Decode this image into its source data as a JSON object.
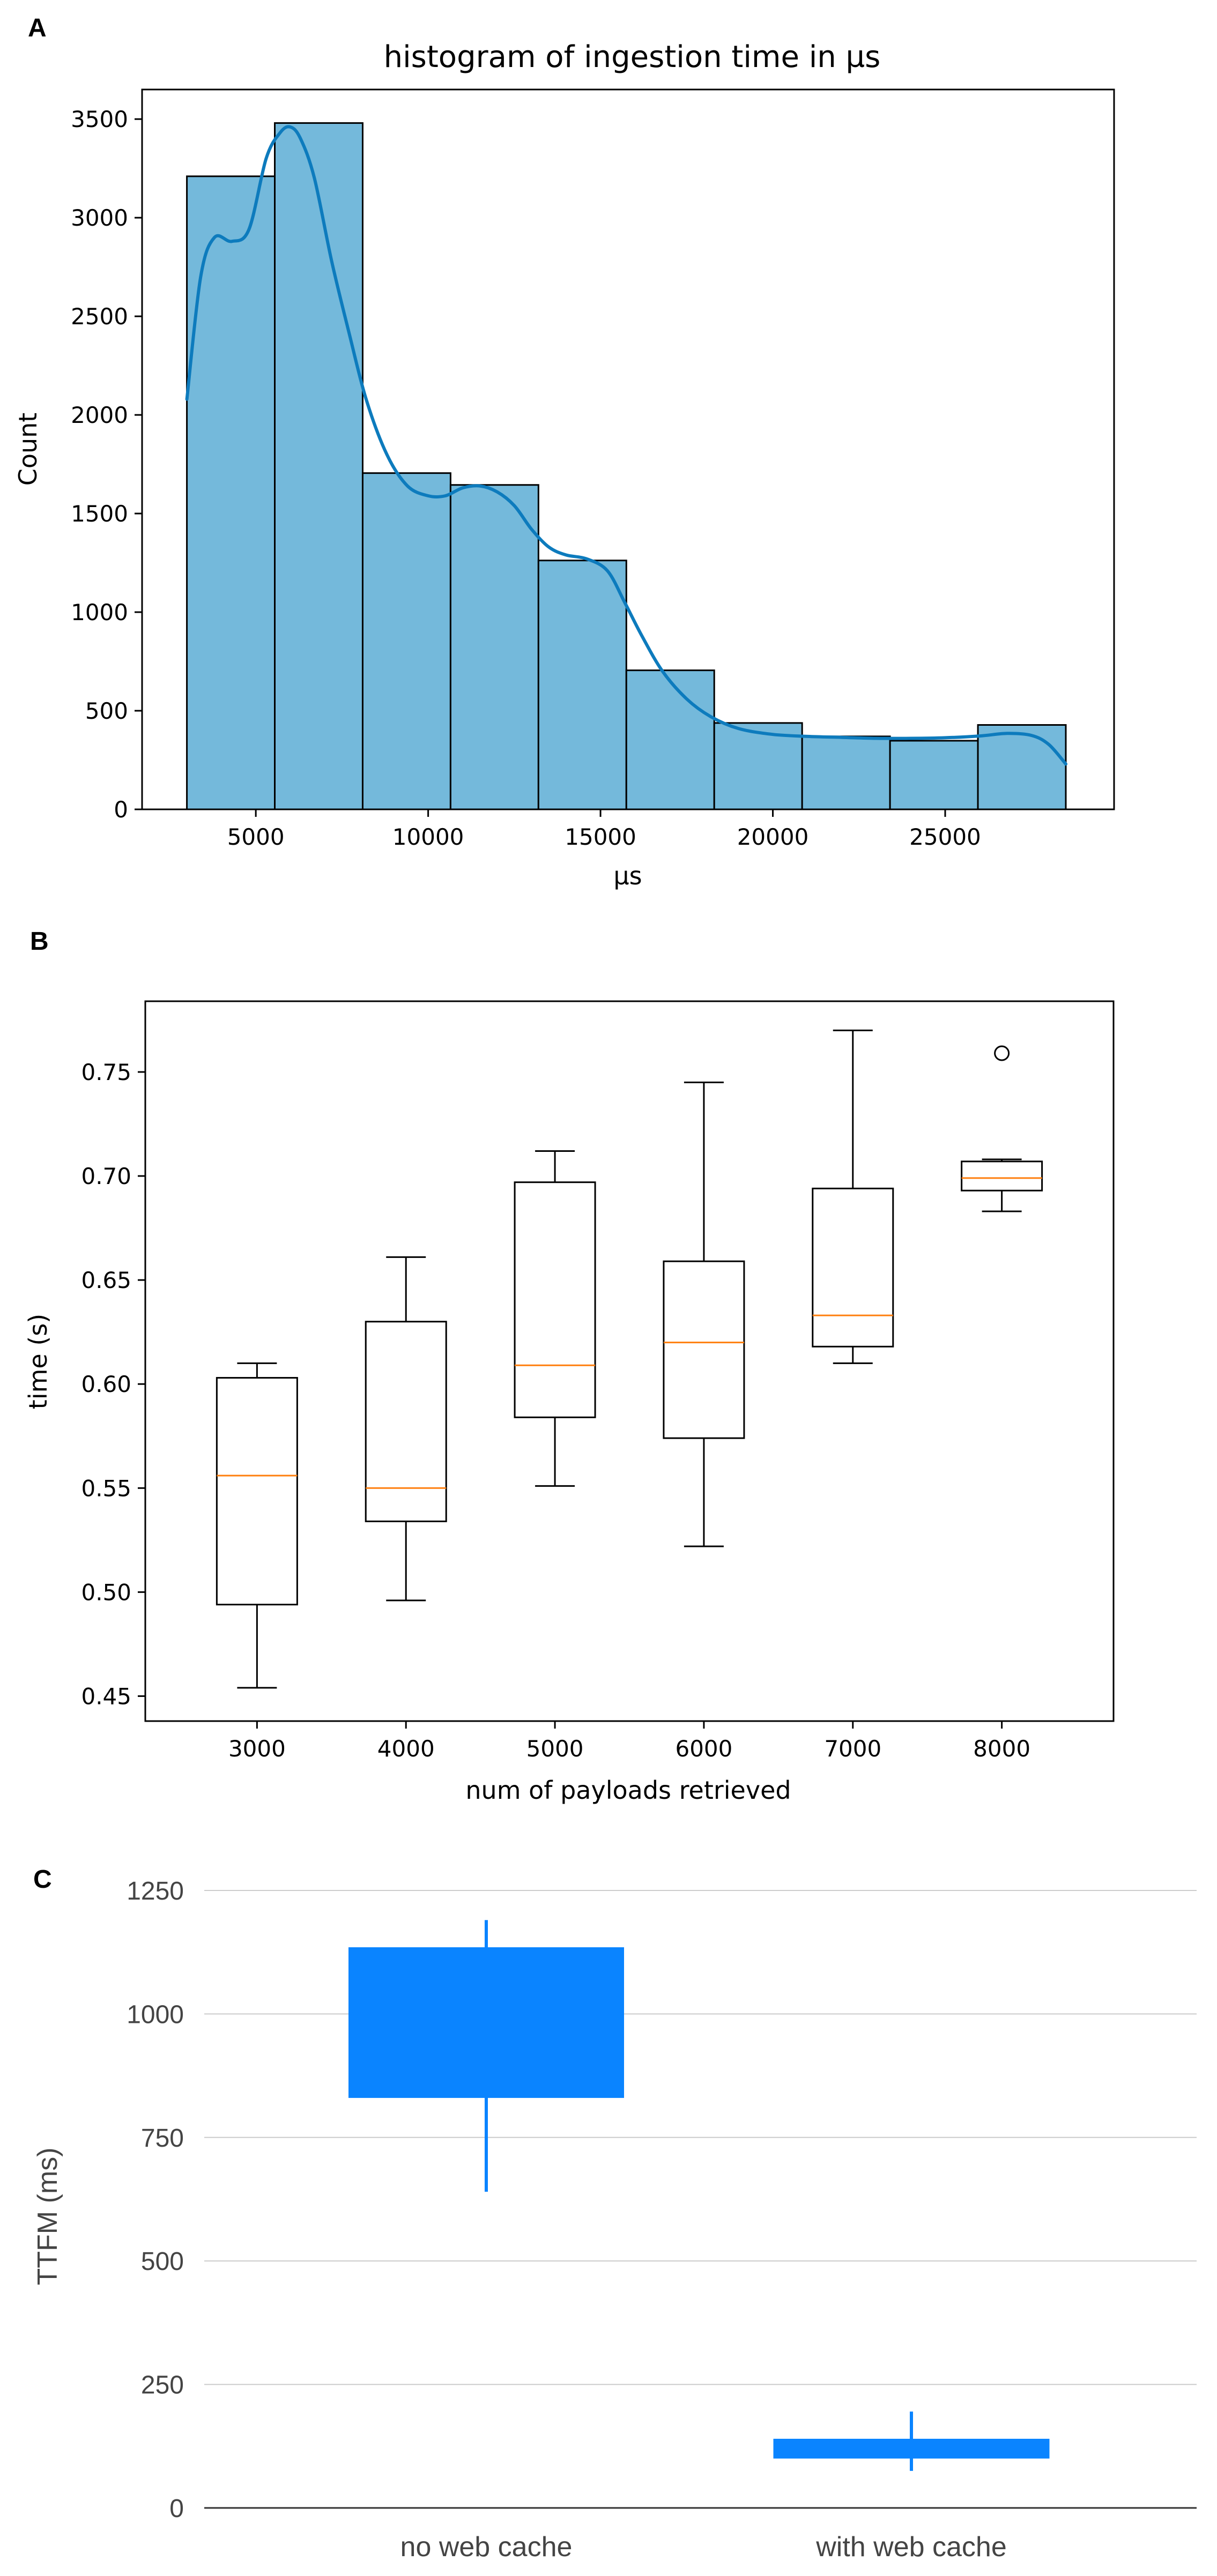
{
  "panel_labels": [
    "A",
    "B",
    "C"
  ],
  "chart_data": [
    {
      "type": "bar",
      "subtype": "histogram_with_kde",
      "title": "histogram of ingestion time in µs",
      "xlabel": "µs",
      "ylabel": "Count",
      "xlim": [
        1700,
        29900
      ],
      "ylim": [
        0,
        3650
      ],
      "xticks": [
        5000,
        10000,
        15000,
        20000,
        25000
      ],
      "yticks": [
        0,
        500,
        1000,
        1500,
        2000,
        2500,
        3000,
        3500
      ],
      "bin_edges": [
        3000,
        5550,
        8100,
        10650,
        13200,
        15750,
        18300,
        20850,
        23400,
        25950,
        28500
      ],
      "values": [
        3210,
        3480,
        1705,
        1645,
        1262,
        705,
        438,
        370,
        348,
        428
      ],
      "bar_color": "#74b9db",
      "kde_color": "#1f77b4",
      "kde": {
        "x": [
          3000,
          3400,
          3800,
          4300,
          4800,
          5300,
          5700,
          6000,
          6300,
          6700,
          7200,
          7700,
          8200,
          8800,
          9400,
          10000,
          10500,
          11000,
          11500,
          12000,
          12500,
          13000,
          13500,
          14000,
          14600,
          15200,
          15700,
          16200,
          16800,
          17500,
          18200,
          19000,
          20000,
          21000,
          22000,
          23000,
          24000,
          25000,
          26000,
          26800,
          27500,
          28000,
          28500
        ],
        "y": [
          2080,
          2700,
          2900,
          2880,
          2940,
          3300,
          3430,
          3460,
          3400,
          3200,
          2780,
          2420,
          2080,
          1800,
          1640,
          1590,
          1590,
          1630,
          1640,
          1610,
          1540,
          1420,
          1330,
          1290,
          1270,
          1210,
          1050,
          880,
          700,
          560,
          470,
          410,
          380,
          370,
          365,
          360,
          360,
          363,
          372,
          385,
          375,
          330,
          230
        ]
      }
    },
    {
      "type": "box",
      "xlabel": "num of payloads retrieved",
      "ylabel": "time (s)",
      "categories": [
        "3000",
        "4000",
        "5000",
        "6000",
        "7000",
        "8000"
      ],
      "ylim": [
        0.438,
        0.784
      ],
      "yticks": [
        0.45,
        0.5,
        0.55,
        0.6,
        0.65,
        0.7,
        0.75
      ],
      "ytick_labels": [
        "0.45",
        "0.50",
        "0.55",
        "0.60",
        "0.65",
        "0.70",
        "0.75"
      ],
      "median_color": "#ff7f0e",
      "boxes": [
        {
          "whislo": 0.454,
          "q1": 0.494,
          "med": 0.556,
          "q3": 0.603,
          "whishi": 0.61,
          "fliers": []
        },
        {
          "whislo": 0.496,
          "q1": 0.534,
          "med": 0.55,
          "q3": 0.63,
          "whishi": 0.661,
          "fliers": []
        },
        {
          "whislo": 0.551,
          "q1": 0.584,
          "med": 0.609,
          "q3": 0.697,
          "whishi": 0.712,
          "fliers": []
        },
        {
          "whislo": 0.522,
          "q1": 0.574,
          "med": 0.62,
          "q3": 0.659,
          "whishi": 0.745,
          "fliers": []
        },
        {
          "whislo": 0.61,
          "q1": 0.618,
          "med": 0.633,
          "q3": 0.694,
          "whishi": 0.77,
          "fliers": []
        },
        {
          "whislo": 0.683,
          "q1": 0.693,
          "med": 0.699,
          "q3": 0.707,
          "whishi": 0.708,
          "fliers": [
            0.759
          ]
        }
      ]
    },
    {
      "type": "box",
      "subtype": "candlestick",
      "ylabel": "TTFM (ms)",
      "categories": [
        "no web cache",
        "with web cache"
      ],
      "ylim": [
        0,
        1250
      ],
      "yticks": [
        0,
        250,
        500,
        750,
        1000,
        1250
      ],
      "grid": true,
      "color": "#0a84ff",
      "boxes": [
        {
          "low": 640,
          "q1": 830,
          "q3": 1135,
          "high": 1190
        },
        {
          "low": 75,
          "q1": 100,
          "q3": 140,
          "high": 195
        }
      ]
    }
  ]
}
